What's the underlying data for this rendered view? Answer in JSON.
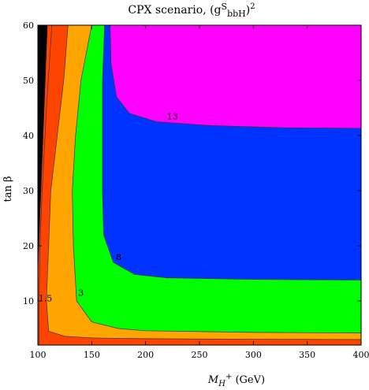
{
  "chart_data": {
    "type": "contour",
    "title": "CPX scenario, (g",
    "title_sup": "S",
    "title_sub": "bbH",
    "title_tail": ")",
    "title_power": "2",
    "xlabel": "M",
    "xlabel_sub": "H",
    "xlabel_sup": "+",
    "xlabel_unit": " (GeV)",
    "ylabel": "tan β",
    "xlim": [
      100,
      400
    ],
    "ylim": [
      2,
      60
    ],
    "xticks": [
      100,
      150,
      200,
      250,
      300,
      350,
      400
    ],
    "yticks": [
      10,
      20,
      30,
      40,
      50,
      60
    ],
    "excluded_region": {
      "color": "#000000",
      "boundary": [
        [
          100,
          14
        ],
        [
          102,
          25
        ],
        [
          104,
          35
        ],
        [
          106,
          45
        ],
        [
          108,
          55
        ],
        [
          109,
          60
        ]
      ]
    },
    "levels": [
      {
        "label": "1.5",
        "color": "#ff4400",
        "label_pos": [
          107,
          10.5
        ],
        "contour": [
          [
            113,
            60
          ],
          [
            108,
            45
          ],
          [
            104,
            30
          ],
          [
            102,
            20
          ],
          [
            101,
            10
          ],
          [
            101,
            2
          ]
        ]
      },
      {
        "label": "3",
        "color": "#ffa500",
        "label_pos": [
          140,
          11.5
        ],
        "contour": [
          [
            128,
            60
          ],
          [
            124,
            50
          ],
          [
            118,
            40
          ],
          [
            112,
            30
          ],
          [
            110,
            20
          ],
          [
            108,
            10
          ],
          [
            110,
            4.5
          ],
          [
            125,
            3.6
          ],
          [
            150,
            3.3
          ],
          [
            200,
            3.15
          ],
          [
            300,
            3.05
          ],
          [
            400,
            3.0
          ]
        ]
      },
      {
        "label": "8",
        "color": "#00ff00",
        "label_pos": [
          175,
          18
        ],
        "contour": [
          [
            150,
            60
          ],
          [
            140,
            50
          ],
          [
            135,
            40
          ],
          [
            132,
            30
          ],
          [
            133,
            20
          ],
          [
            136,
            10
          ],
          [
            150,
            6.2
          ],
          [
            175,
            5.0
          ],
          [
            200,
            4.6
          ],
          [
            300,
            4.3
          ],
          [
            400,
            4.2
          ]
        ]
      },
      {
        "label": "13",
        "color": "#0033ff",
        "label_pos": [
          225,
          43.5
        ],
        "contour": [
          [
            162,
            60
          ],
          [
            160,
            50
          ],
          [
            160,
            40
          ],
          [
            160,
            30
          ],
          [
            161,
            22
          ],
          [
            170,
            17
          ],
          [
            190,
            14.8
          ],
          [
            220,
            14.2
          ],
          [
            300,
            13.9
          ],
          [
            400,
            13.8
          ]
        ]
      },
      {
        "label": "",
        "color": "#ff00ff",
        "contour": [
          [
            167,
            60
          ],
          [
            168,
            53
          ],
          [
            173,
            47
          ],
          [
            185,
            44
          ],
          [
            210,
            42.5
          ],
          [
            260,
            41.8
          ],
          [
            330,
            41.4
          ],
          [
            400,
            41.3
          ]
        ]
      }
    ]
  }
}
